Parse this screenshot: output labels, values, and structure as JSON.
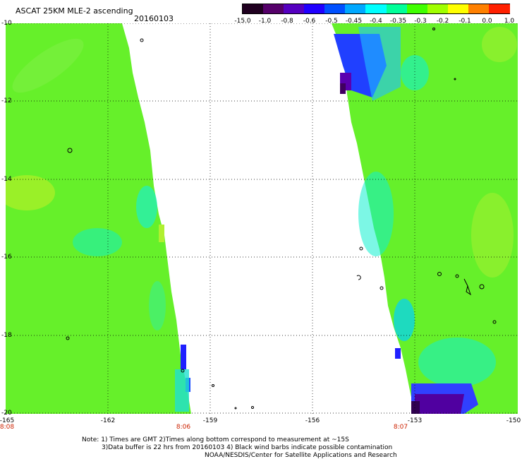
{
  "header": {
    "title": "ASCAT 25KM MLE-2 ascending",
    "date": "20160103"
  },
  "colorbar": {
    "labels": [
      "-15.0",
      "-1.0",
      "-0.8",
      "-0.6",
      "-0.5",
      "-0.45",
      "-0.4",
      "-0.35",
      "-0.3",
      "-0.2",
      "-0.1",
      "0.0",
      "1.0"
    ],
    "colors": [
      "#200020",
      "#55006a",
      "#5500c0",
      "#2000ff",
      "#0050ff",
      "#00a8ff",
      "#00ffff",
      "#00ff99",
      "#40ff00",
      "#a0ff00",
      "#ffff00",
      "#ff8000",
      "#ff2000"
    ]
  },
  "map": {
    "lat_labels": [
      "-10",
      "-12",
      "-14",
      "-16",
      "-18",
      "-20"
    ],
    "lon_labels": [
      "-165",
      "-162",
      "-159",
      "-156",
      "-153",
      "-150"
    ],
    "time_labels": [
      "8:08",
      "8:06",
      "8:07"
    ],
    "background_color": "#60f030",
    "swath_colors": {
      "green": "#60f030",
      "cyan": "#00f0e0",
      "blue": "#2020ff",
      "purple": "#400080",
      "lime": "#a0f030"
    }
  },
  "footer": {
    "line1": "Note: 1) Times are GMT 2)Times along bottom correspond to measurement at ~15S",
    "line2": "3)Data buffer is 22 hrs from 20160103 4) Black wind barbs indicate possible contamination",
    "line3": "NOAA/NESDIS/Center for Satellite Applications and Research"
  }
}
